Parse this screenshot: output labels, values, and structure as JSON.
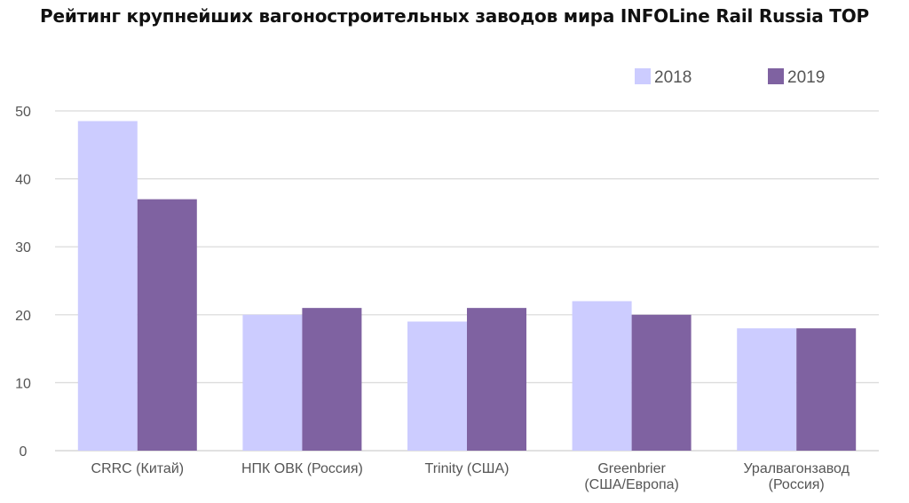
{
  "chart_data": {
    "type": "bar",
    "title": "Рейтинг крупнейших вагоностроительных заводов мира INFOLine Rail Russia TOP",
    "categories": [
      [
        "CRRC (Китай)"
      ],
      [
        "НПК ОВК (Россия)"
      ],
      [
        "Trinity (США)"
      ],
      [
        "Greenbrier",
        "(США/Европа)"
      ],
      [
        "Уралвагонзавод",
        "(Россия)"
      ]
    ],
    "series": [
      {
        "name": "2018",
        "color": "#ccccff",
        "values": [
          48.5,
          20,
          19,
          22,
          18
        ]
      },
      {
        "name": "2019",
        "color": "#7f62a1",
        "values": [
          37,
          21,
          21,
          20,
          18
        ]
      }
    ],
    "ylim": [
      0,
      50
    ],
    "yticks": [
      0,
      10,
      20,
      30,
      40,
      50
    ],
    "grid": true,
    "legend_position": "top-right",
    "xlabel": "",
    "ylabel": ""
  }
}
